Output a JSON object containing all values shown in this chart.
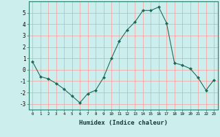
{
  "x": [
    0,
    1,
    2,
    3,
    4,
    5,
    6,
    7,
    8,
    9,
    10,
    11,
    12,
    13,
    14,
    15,
    16,
    17,
    18,
    19,
    20,
    21,
    22,
    23
  ],
  "y": [
    0.7,
    -0.6,
    -0.8,
    -1.2,
    -1.7,
    -2.3,
    -2.9,
    -2.1,
    -1.8,
    -0.7,
    1.0,
    2.5,
    3.5,
    4.2,
    5.2,
    5.2,
    5.5,
    4.1,
    0.6,
    0.4,
    0.1,
    -0.7,
    -1.8,
    -0.9
  ],
  "title": "",
  "xlabel": "Humidex (Indice chaleur)",
  "ylabel": "",
  "line_color": "#1a6b5a",
  "marker": "D",
  "marker_size": 2,
  "bg_color": "#cceeed",
  "grid_color": "#ff9999",
  "xlim": [
    -0.5,
    23.5
  ],
  "ylim": [
    -3.5,
    6.0
  ],
  "yticks": [
    -3,
    -2,
    -1,
    0,
    1,
    2,
    3,
    4,
    5
  ],
  "xticks": [
    0,
    1,
    2,
    3,
    4,
    5,
    6,
    7,
    8,
    9,
    10,
    11,
    12,
    13,
    14,
    15,
    16,
    17,
    18,
    19,
    20,
    21,
    22,
    23
  ]
}
